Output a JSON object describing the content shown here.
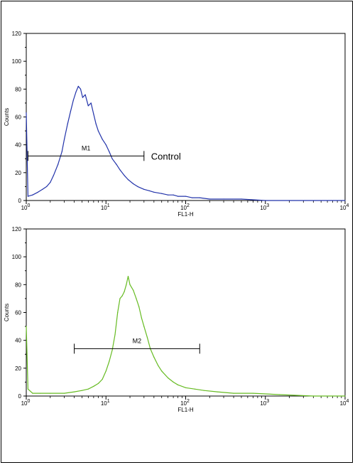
{
  "chart_data": [
    {
      "type": "line",
      "title": "",
      "xlabel": "FL1-H",
      "ylabel": "Counts",
      "x_scale": "log",
      "xlim": [
        1,
        10000
      ],
      "ylim": [
        0,
        120
      ],
      "x_ticks": [
        1,
        10,
        100,
        1000,
        10000
      ],
      "x_tick_labels": [
        {
          "base": "10",
          "exp": "0"
        },
        {
          "base": "10",
          "exp": "1"
        },
        {
          "base": "10",
          "exp": "2"
        },
        {
          "base": "10",
          "exp": "3"
        },
        {
          "base": "10",
          "exp": "4"
        }
      ],
      "y_ticks": [
        0,
        20,
        40,
        60,
        80,
        100,
        120
      ],
      "grid": false,
      "color": "#2233aa",
      "series": [
        {
          "x": [
            1.0,
            1.05,
            1.2,
            1.4,
            1.6,
            1.8,
            2.0,
            2.2,
            2.5,
            2.8,
            3.0,
            3.3,
            3.6,
            3.9,
            4.2,
            4.5,
            4.8,
            5.1,
            5.5,
            6.0,
            6.5,
            7.0,
            7.5,
            8.0,
            9.0,
            10.0,
            11.0,
            12.0,
            13.5,
            15.0,
            17.0,
            19.0,
            22.0,
            25.0,
            30.0,
            35.0,
            40.0,
            50.0,
            60.0,
            70.0,
            80.0,
            100.0,
            120.0,
            150.0,
            200.0,
            300.0,
            500.0,
            1000.0,
            2000.0,
            10000.0
          ],
          "values": [
            63,
            3,
            4,
            6,
            8,
            10,
            13,
            18,
            26,
            35,
            44,
            55,
            64,
            72,
            78,
            82,
            80,
            74,
            76,
            68,
            70,
            62,
            55,
            50,
            44,
            40,
            35,
            30,
            26,
            22,
            18,
            15,
            12,
            10,
            8,
            7,
            6,
            5,
            4,
            4,
            3,
            3,
            2,
            2,
            1,
            1,
            1,
            0,
            0,
            0
          ]
        }
      ],
      "marker": {
        "label": "M1",
        "x_start": 1.05,
        "x_end": 30,
        "y": 32
      },
      "annotation": "Control"
    },
    {
      "type": "line",
      "title": "",
      "xlabel": "FL1-H",
      "ylabel": "Counts",
      "x_scale": "log",
      "xlim": [
        1,
        10000
      ],
      "ylim": [
        0,
        120
      ],
      "x_ticks": [
        1,
        10,
        100,
        1000,
        10000
      ],
      "x_tick_labels": [
        {
          "base": "10",
          "exp": "0"
        },
        {
          "base": "10",
          "exp": "1"
        },
        {
          "base": "10",
          "exp": "2"
        },
        {
          "base": "10",
          "exp": "3"
        },
        {
          "base": "10",
          "exp": "4"
        }
      ],
      "y_ticks": [
        0,
        20,
        40,
        60,
        80,
        100,
        120
      ],
      "grid": false,
      "color": "#66bb22",
      "series": [
        {
          "x": [
            1.0,
            1.05,
            1.2,
            1.5,
            2.0,
            3.0,
            4.0,
            5.0,
            6.0,
            7.0,
            8.0,
            9.0,
            10.0,
            11.0,
            12.0,
            13.0,
            14.0,
            15.0,
            16.0,
            17.0,
            18.0,
            19.0,
            20.0,
            22.0,
            24.0,
            26.0,
            28.0,
            30.0,
            33.0,
            36.0,
            40.0,
            45.0,
            50.0,
            60.0,
            70.0,
            80.0,
            100.0,
            130.0,
            170.0,
            250.0,
            400.0,
            700.0,
            1500.0,
            4000.0,
            10000.0
          ],
          "values": [
            50,
            5,
            2,
            2,
            2,
            2,
            3,
            4,
            5,
            7,
            9,
            12,
            18,
            25,
            33,
            44,
            60,
            70,
            72,
            75,
            80,
            86,
            80,
            76,
            70,
            64,
            56,
            50,
            42,
            34,
            28,
            22,
            18,
            13,
            10,
            8,
            6,
            5,
            4,
            3,
            2,
            2,
            1,
            0,
            0
          ]
        }
      ],
      "marker": {
        "label": "M2",
        "x_start": 4,
        "x_end": 150,
        "y": 34
      },
      "annotation": ""
    }
  ]
}
